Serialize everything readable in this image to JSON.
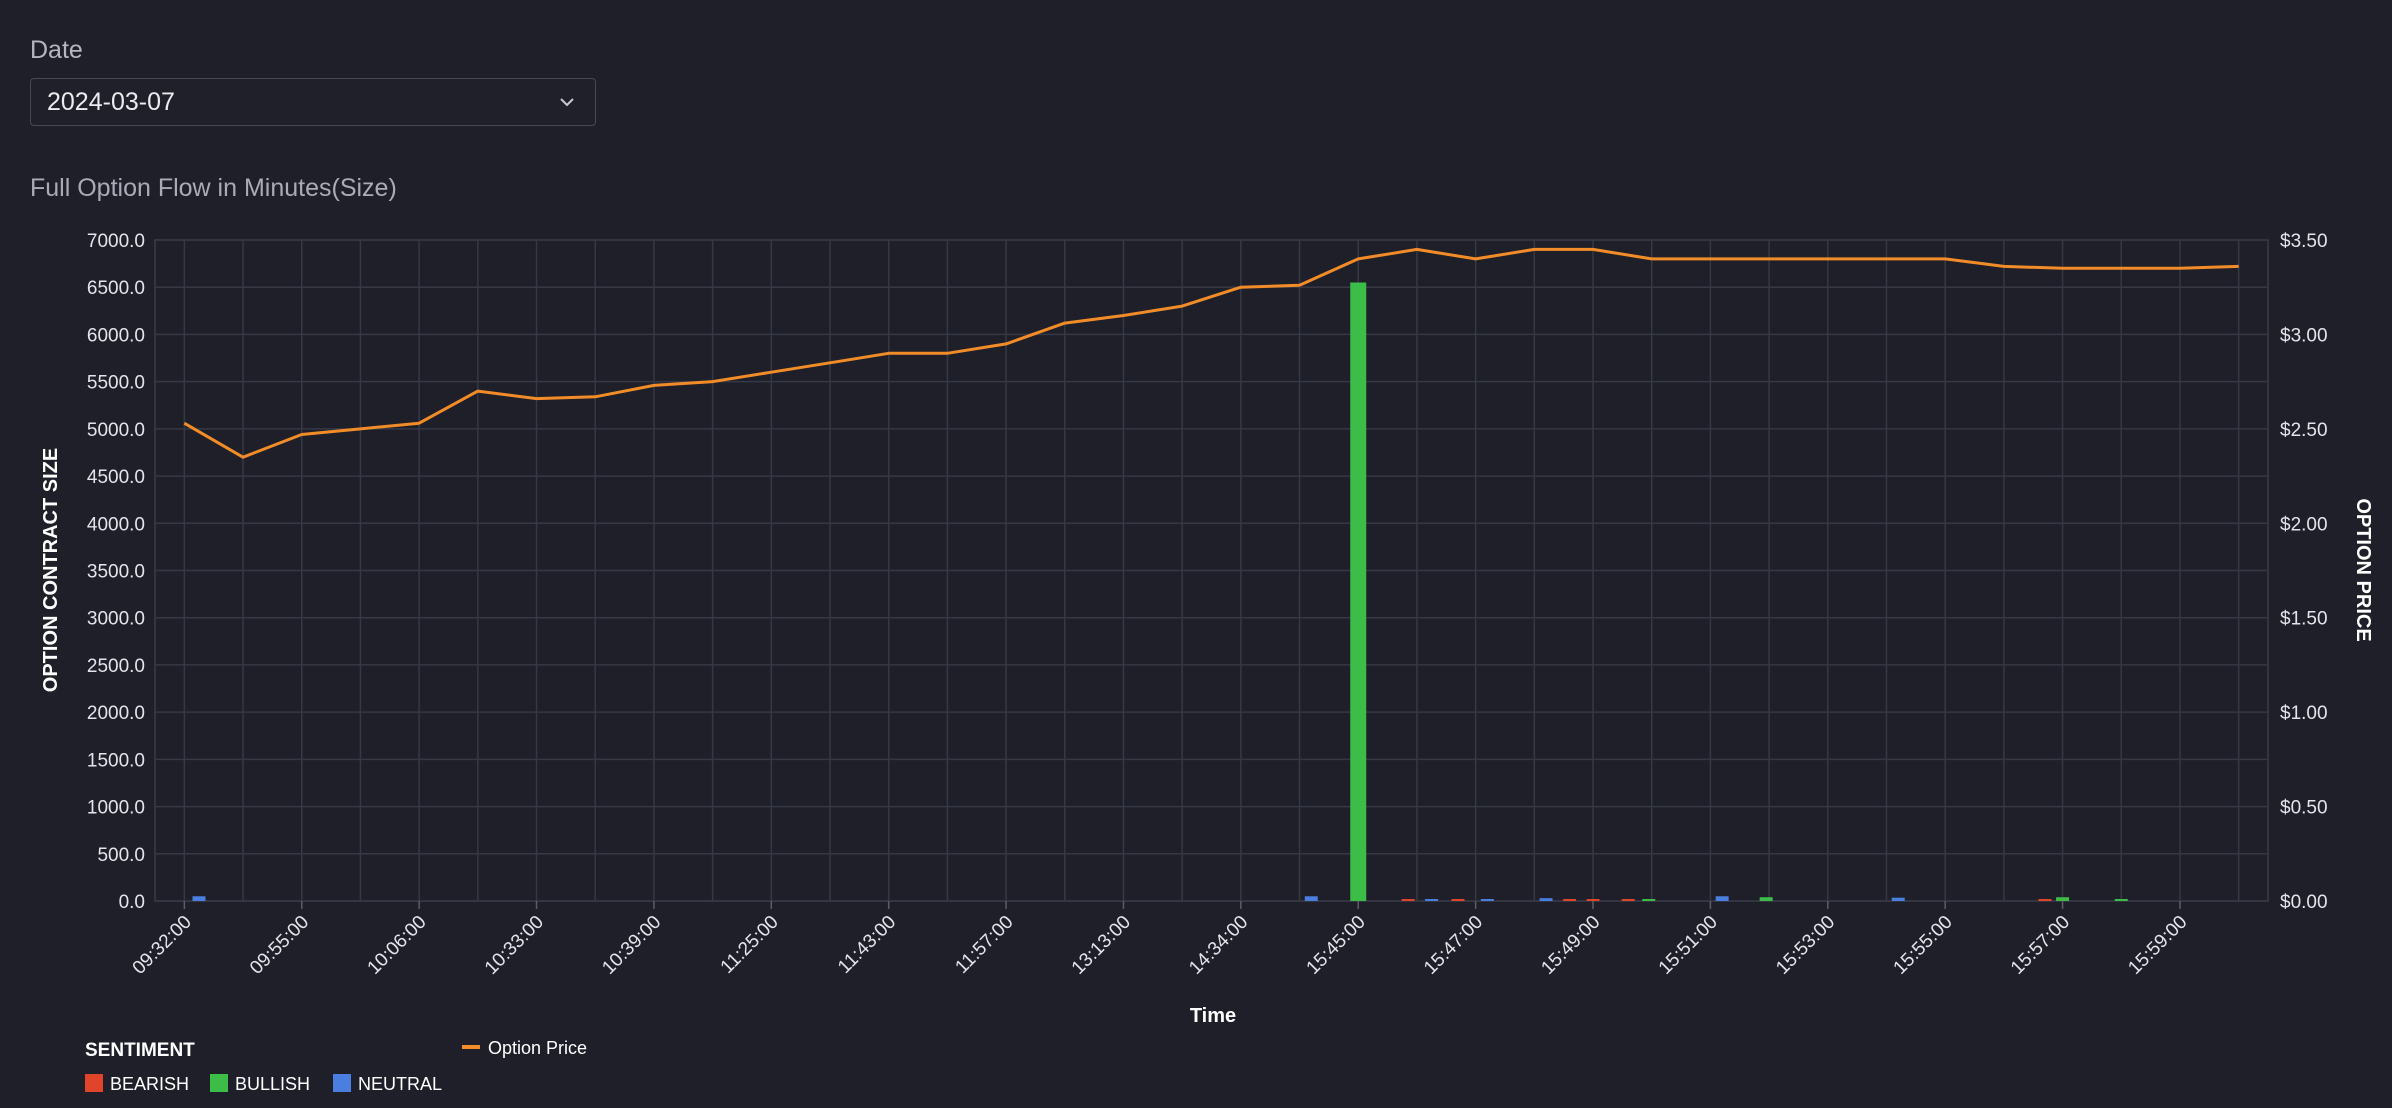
{
  "date_filter": {
    "label": "Date",
    "value": "2024-03-07"
  },
  "chart_data": {
    "type": "bar",
    "title": "Full Option Flow in Minutes(Size)",
    "xlabel": "Time",
    "ylabel": "OPTION CONTRACT SIZE",
    "y2label": "OPTION PRICE",
    "ylim": [
      0,
      7000
    ],
    "y2lim": [
      0,
      3.5
    ],
    "y_ticks": [
      "0.0",
      "500.0",
      "1000.0",
      "1500.0",
      "2000.0",
      "2500.0",
      "3000.0",
      "3500.0",
      "4000.0",
      "4500.0",
      "5000.0",
      "5500.0",
      "6000.0",
      "6500.0",
      "7000.0"
    ],
    "y2_ticks": [
      "$0.00",
      "$0.50",
      "$1.00",
      "$1.50",
      "$2.00",
      "$2.50",
      "$3.00",
      "$3.50"
    ],
    "x_tick_labels": [
      "09:32:00",
      "09:55:00",
      "10:06:00",
      "10:33:00",
      "10:39:00",
      "11:25:00",
      "11:43:00",
      "11:57:00",
      "13:13:00",
      "14:34:00",
      "15:45:00",
      "15:47:00",
      "15:49:00",
      "15:51:00",
      "15:53:00",
      "15:55:00",
      "15:57:00",
      "15:59:00"
    ],
    "grid": true,
    "legend": {
      "title": "SENTIMENT",
      "items": [
        {
          "name": "BEARISH",
          "color": "#e0442a"
        },
        {
          "name": "BULLISH",
          "color": "#3cbd48"
        },
        {
          "name": "NEUTRAL",
          "color": "#4a7fe0"
        }
      ],
      "line_item": {
        "name": "Option Price",
        "color": "#f28c28"
      },
      "placement": "bottom-left"
    },
    "bars": [
      {
        "slot": 0.25,
        "sentiment": "NEUTRAL",
        "value": 50
      },
      {
        "slot": 19.2,
        "sentiment": "NEUTRAL",
        "value": 50
      },
      {
        "slot": 20.0,
        "sentiment": "BULLISH",
        "value": 6550
      },
      {
        "slot": 20.85,
        "sentiment": "BEARISH",
        "value": 15
      },
      {
        "slot": 21.25,
        "sentiment": "NEUTRAL",
        "value": 20
      },
      {
        "slot": 21.7,
        "sentiment": "BEARISH",
        "value": 15
      },
      {
        "slot": 22.2,
        "sentiment": "NEUTRAL",
        "value": 15
      },
      {
        "slot": 23.2,
        "sentiment": "NEUTRAL",
        "value": 30
      },
      {
        "slot": 23.6,
        "sentiment": "BEARISH",
        "value": 15
      },
      {
        "slot": 24.0,
        "sentiment": "BEARISH",
        "value": 15
      },
      {
        "slot": 24.6,
        "sentiment": "BEARISH",
        "value": 10
      },
      {
        "slot": 24.95,
        "sentiment": "BULLISH",
        "value": 15
      },
      {
        "slot": 26.2,
        "sentiment": "NEUTRAL",
        "value": 50
      },
      {
        "slot": 26.95,
        "sentiment": "BULLISH",
        "value": 40
      },
      {
        "slot": 29.2,
        "sentiment": "NEUTRAL",
        "value": 35
      },
      {
        "slot": 31.7,
        "sentiment": "BEARISH",
        "value": 20
      },
      {
        "slot": 32.0,
        "sentiment": "BULLISH",
        "value": 40
      },
      {
        "slot": 33.0,
        "sentiment": "BULLISH",
        "value": 15
      }
    ],
    "price_series": {
      "name": "Option Price",
      "values": [
        2.53,
        2.35,
        2.47,
        2.5,
        2.53,
        2.7,
        2.66,
        2.67,
        2.73,
        2.75,
        2.8,
        2.85,
        2.9,
        2.9,
        2.95,
        3.06,
        3.1,
        3.15,
        3.25,
        3.26,
        3.4,
        3.45,
        3.4,
        3.45,
        3.45,
        3.4,
        3.4,
        3.4,
        3.4,
        3.4,
        3.4,
        3.36,
        3.35,
        3.35,
        3.35,
        3.36
      ]
    }
  }
}
